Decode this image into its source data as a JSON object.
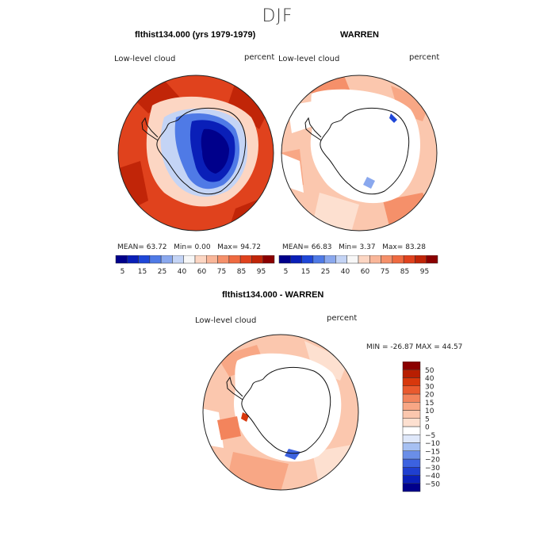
{
  "figure": {
    "season": "DJF"
  },
  "panels": [
    {
      "id": "model",
      "title": "flthist134.000 (yrs 1979-1979)",
      "field": "Low-level cloud",
      "units": "percent",
      "stats": {
        "mean_label": "MEAN=",
        "mean": "63.72",
        "min_label": "Min=",
        "min": "0.00",
        "max_label": "Max=",
        "max": "94.72"
      }
    },
    {
      "id": "obs",
      "title": "WARREN",
      "field": "Low-level cloud",
      "units": "percent",
      "stats": {
        "mean_label": "MEAN=",
        "mean": "66.83",
        "min_label": "Min=",
        "min": "3.37",
        "max_label": "Max=",
        "max": "83.28"
      }
    },
    {
      "id": "diff",
      "title": "flthist134.000 - WARREN",
      "field": "Low-level cloud",
      "units": "percent",
      "stats_text": "MIN = -26.87 MAX =  44.57"
    }
  ],
  "colorbar_abs": {
    "colors": [
      "#00008b",
      "#0a1fb8",
      "#1f47d8",
      "#4f7ae6",
      "#8aa8ee",
      "#c4d4f5",
      "#f7f7f7",
      "#fcd6c3",
      "#f9b699",
      "#f5906a",
      "#ef6a40",
      "#e0421d",
      "#c12508",
      "#8b0000"
    ],
    "tick_labels": [
      "5",
      "15",
      "25",
      "40",
      "60",
      "75",
      "85",
      "95"
    ]
  },
  "colorbar_diff": {
    "colors": [
      "#00008b",
      "#0a1fb8",
      "#1f3fd0",
      "#3c62e0",
      "#6a8ee8",
      "#a6c0f2",
      "#dfe8fa",
      "#ffffff",
      "#fde0d0",
      "#fbc7ae",
      "#f8a785",
      "#f3845c",
      "#ea5a2e",
      "#d8380c",
      "#b81e02",
      "#8b0000"
    ],
    "tick_labels": [
      "50",
      "40",
      "30",
      "20",
      "15",
      "10",
      "5",
      "0",
      "−5",
      "−10",
      "−15",
      "−20",
      "−30",
      "−40",
      "−50"
    ]
  },
  "chart_data": [
    {
      "type": "heatmap",
      "title": "flthist134.000 (yrs 1979-1979)",
      "subtitle": "Low-level cloud",
      "units": "percent",
      "projection": "south polar stereographic",
      "stats": {
        "mean": 63.72,
        "min": 0.0,
        "max": 94.72
      },
      "contour_levels": [
        5,
        10,
        15,
        20,
        25,
        30,
        40,
        50,
        60,
        70,
        75,
        80,
        85,
        90,
        95
      ]
    },
    {
      "type": "heatmap",
      "title": "WARREN",
      "subtitle": "Low-level cloud",
      "units": "percent",
      "projection": "south polar stereographic",
      "stats": {
        "mean": 66.83,
        "min": 3.37,
        "max": 83.28
      },
      "contour_levels": [
        5,
        10,
        15,
        20,
        25,
        30,
        40,
        50,
        60,
        70,
        75,
        80,
        85,
        90,
        95
      ]
    },
    {
      "type": "heatmap",
      "title": "flthist134.000 - WARREN",
      "subtitle": "Low-level cloud",
      "units": "percent",
      "projection": "south polar stereographic",
      "stats": {
        "min": -26.87,
        "max": 44.57
      },
      "contour_levels": [
        -50,
        -40,
        -30,
        -20,
        -15,
        -10,
        -5,
        0,
        5,
        10,
        15,
        20,
        30,
        40,
        50
      ]
    }
  ]
}
